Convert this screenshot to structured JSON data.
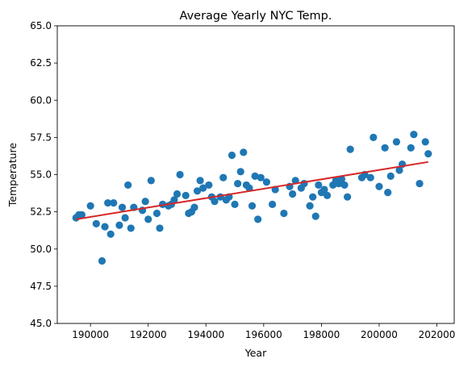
{
  "chart_data": {
    "type": "scatter",
    "title": "Average Yearly NYC Temp.",
    "xlabel": "Year",
    "ylabel": "Temperature",
    "xlim": [
      188850,
      202600
    ],
    "ylim": [
      45.0,
      65.0
    ],
    "xticks": [
      190000,
      192000,
      194000,
      196000,
      198000,
      200000,
      202000
    ],
    "xtick_labels": [
      "190000",
      "192000",
      "194000",
      "196000",
      "198000",
      "200000",
      "202000"
    ],
    "yticks": [
      45.0,
      47.5,
      50.0,
      52.5,
      55.0,
      57.5,
      60.0,
      62.5,
      65.0
    ],
    "ytick_labels": [
      "45.0",
      "47.5",
      "50.0",
      "52.5",
      "55.0",
      "57.5",
      "60.0",
      "62.5",
      "65.0"
    ],
    "grid": false,
    "legend": "none",
    "colors": {
      "points": "#1f77b4",
      "trend": "#d62728"
    },
    "series": [
      {
        "kind": "points",
        "points": [
          [
            189500,
            52.1
          ],
          [
            189600,
            52.3
          ],
          [
            189700,
            52.3
          ],
          [
            190000,
            52.9
          ],
          [
            190200,
            51.7
          ],
          [
            190400,
            49.2
          ],
          [
            190500,
            51.5
          ],
          [
            190600,
            53.1
          ],
          [
            190700,
            51.0
          ],
          [
            190800,
            53.1
          ],
          [
            191000,
            51.6
          ],
          [
            191100,
            52.8
          ],
          [
            191200,
            52.1
          ],
          [
            191300,
            54.3
          ],
          [
            191400,
            51.4
          ],
          [
            191500,
            52.8
          ],
          [
            191800,
            52.6
          ],
          [
            191900,
            53.2
          ],
          [
            192000,
            52.0
          ],
          [
            192100,
            54.6
          ],
          [
            192300,
            52.4
          ],
          [
            192400,
            51.4
          ],
          [
            192500,
            53.0
          ],
          [
            192700,
            52.9
          ],
          [
            192800,
            53.0
          ],
          [
            192900,
            53.3
          ],
          [
            193000,
            53.7
          ],
          [
            193100,
            55.0
          ],
          [
            193300,
            53.6
          ],
          [
            193400,
            52.4
          ],
          [
            193500,
            52.5
          ],
          [
            193600,
            52.8
          ],
          [
            193700,
            53.9
          ],
          [
            193800,
            54.6
          ],
          [
            193900,
            54.1
          ],
          [
            194100,
            54.3
          ],
          [
            194200,
            53.5
          ],
          [
            194300,
            53.2
          ],
          [
            194500,
            53.5
          ],
          [
            194600,
            54.8
          ],
          [
            194700,
            53.3
          ],
          [
            194800,
            53.5
          ],
          [
            194900,
            56.3
          ],
          [
            195000,
            53.0
          ],
          [
            195100,
            54.4
          ],
          [
            195200,
            55.2
          ],
          [
            195300,
            56.5
          ],
          [
            195400,
            54.3
          ],
          [
            195500,
            54.1
          ],
          [
            195600,
            52.9
          ],
          [
            195700,
            54.9
          ],
          [
            195800,
            52.0
          ],
          [
            195900,
            54.8
          ],
          [
            196100,
            54.5
          ],
          [
            196300,
            53.0
          ],
          [
            196400,
            54.0
          ],
          [
            196700,
            52.4
          ],
          [
            196900,
            54.2
          ],
          [
            197000,
            53.7
          ],
          [
            197100,
            54.6
          ],
          [
            197300,
            54.1
          ],
          [
            197400,
            54.4
          ],
          [
            197600,
            52.9
          ],
          [
            197700,
            53.5
          ],
          [
            197800,
            52.2
          ],
          [
            197900,
            54.3
          ],
          [
            198000,
            53.8
          ],
          [
            198100,
            54.0
          ],
          [
            198200,
            53.6
          ],
          [
            198400,
            54.3
          ],
          [
            198500,
            54.6
          ],
          [
            198600,
            54.4
          ],
          [
            198700,
            54.7
          ],
          [
            198800,
            54.3
          ],
          [
            198900,
            53.5
          ],
          [
            199000,
            56.7
          ],
          [
            199400,
            54.8
          ],
          [
            199500,
            55.0
          ],
          [
            199700,
            54.8
          ],
          [
            199800,
            57.5
          ],
          [
            200000,
            54.2
          ],
          [
            200200,
            56.8
          ],
          [
            200300,
            53.8
          ],
          [
            200400,
            54.9
          ],
          [
            200600,
            57.2
          ],
          [
            200700,
            55.3
          ],
          [
            200800,
            55.7
          ],
          [
            201100,
            56.8
          ],
          [
            201200,
            57.7
          ],
          [
            201400,
            54.4
          ],
          [
            201600,
            57.2
          ],
          [
            201700,
            56.4
          ]
        ]
      },
      {
        "kind": "trend",
        "points": [
          [
            189500,
            52.0
          ],
          [
            201700,
            55.85
          ]
        ]
      }
    ]
  }
}
